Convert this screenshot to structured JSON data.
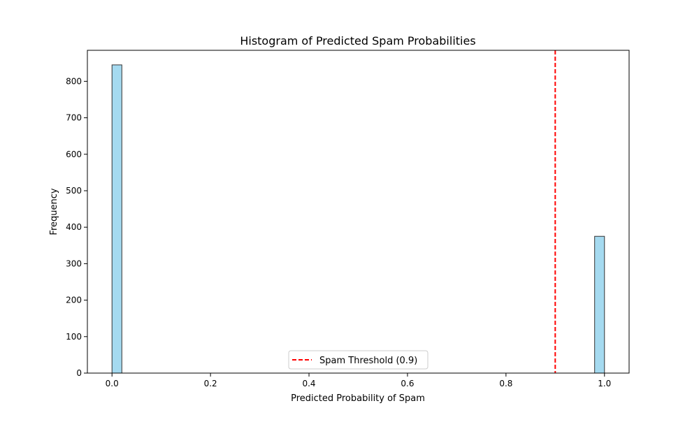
{
  "chart_data": {
    "type": "bar",
    "title": "Histogram of Predicted Spam Probabilities",
    "xlabel": "Predicted Probability of Spam",
    "ylabel": "Frequency",
    "xlim": [
      -0.05,
      1.05
    ],
    "ylim": [
      0,
      885
    ],
    "xticks": [
      "0.0",
      "0.2",
      "0.4",
      "0.6",
      "0.8",
      "1.0"
    ],
    "xtick_values": [
      0.0,
      0.2,
      0.4,
      0.6,
      0.8,
      1.0
    ],
    "yticks": [
      "0",
      "100",
      "200",
      "300",
      "400",
      "500",
      "600",
      "700",
      "800"
    ],
    "ytick_values": [
      0,
      100,
      200,
      300,
      400,
      500,
      600,
      700,
      800
    ],
    "bins": [
      {
        "start": 0.0,
        "end": 0.02,
        "value": 845
      },
      {
        "start": 0.98,
        "end": 1.0,
        "value": 375
      }
    ],
    "threshold": {
      "value": 0.9,
      "label": "Spam Threshold (0.9)",
      "color": "#ff0000",
      "style": "dashed"
    },
    "bar_color": "#87ceeb",
    "bar_edge_color": "#333333",
    "grid": false,
    "legend_position": "lower center"
  }
}
